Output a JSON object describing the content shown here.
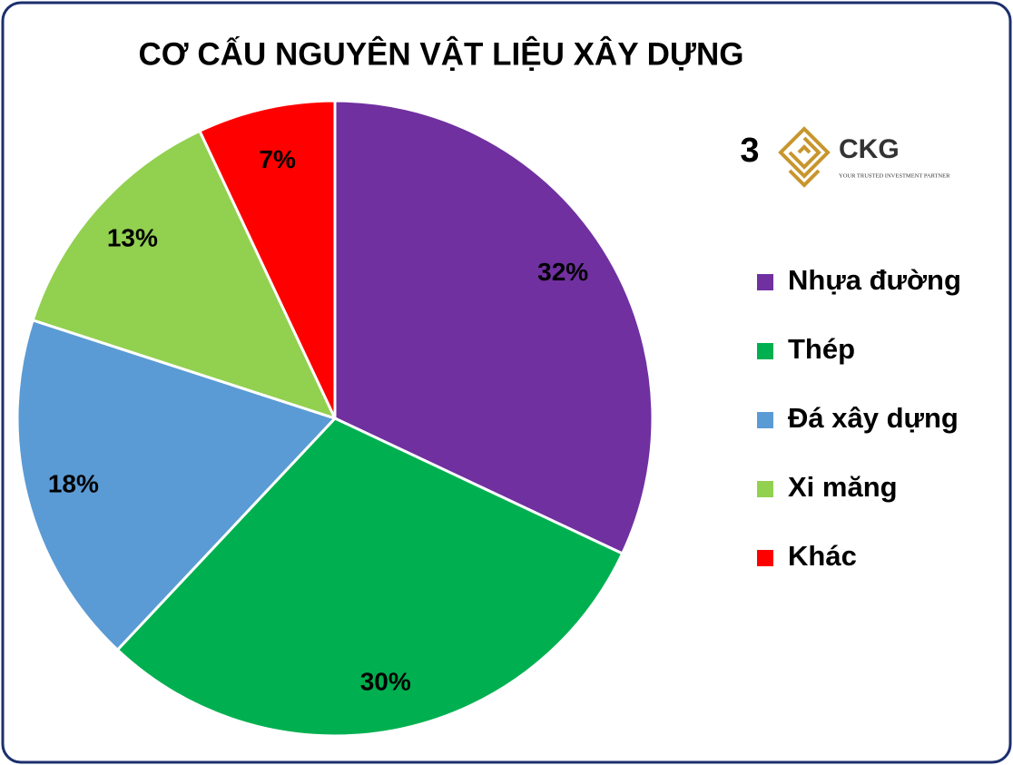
{
  "chart_data": {
    "type": "pie",
    "title": "CƠ CẤU NGUYÊN VẬT LIỆU XÂY DỰNG",
    "categories": [
      "Nhựa đường",
      "Thép",
      "Đá xây dựng",
      "Xi măng",
      "Khác"
    ],
    "values": [
      32,
      30,
      18,
      13,
      7
    ],
    "value_labels": [
      "32%",
      "30%",
      "18%",
      "13%",
      "7%"
    ],
    "colors": [
      "#7030a0",
      "#00b050",
      "#5b9bd5",
      "#92d050",
      "#ff0000"
    ],
    "legend": "right"
  },
  "logo": {
    "number": "3",
    "name": "CKG",
    "tagline": "YOUR TRUSTED INVESTMENT PARTNER"
  }
}
